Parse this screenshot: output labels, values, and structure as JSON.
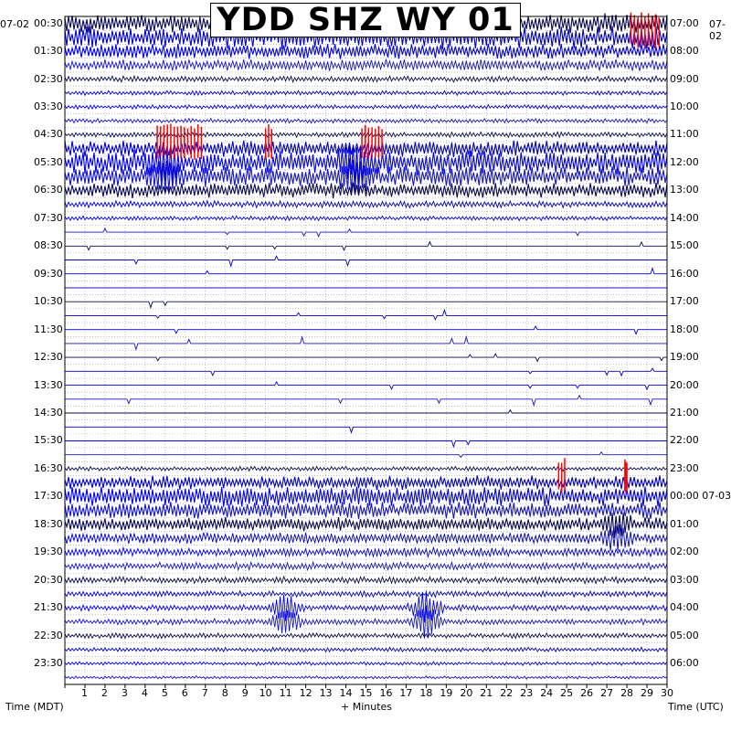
{
  "chart_data": {
    "type": "helicorder",
    "title": "YDD SHZ WY 01",
    "left_axis_label": "Time (MDT)",
    "right_axis_label": "Time (UTC)",
    "x_axis_label": "+ Minutes",
    "x_range": [
      0,
      30
    ],
    "x_ticks": [
      "1",
      "2",
      "3",
      "4",
      "5",
      "6",
      "7",
      "8",
      "9",
      "10",
      "11",
      "12",
      "13",
      "14",
      "15",
      "16",
      "17",
      "18",
      "19",
      "20",
      "21",
      "22",
      "23",
      "24",
      "25",
      "26",
      "27",
      "28",
      "29",
      "30"
    ],
    "left_date": "07-02",
    "right_dates": [
      "07-02",
      "07-03"
    ],
    "left_times": [
      "00:30",
      "01:30",
      "02:30",
      "03:30",
      "04:30",
      "05:30",
      "06:30",
      "07:30",
      "08:30",
      "09:30",
      "10:30",
      "11:30",
      "12:30",
      "13:30",
      "14:30",
      "15:30",
      "16:30",
      "17:30",
      "18:30",
      "19:30",
      "20:30",
      "21:30",
      "22:30",
      "23:30"
    ],
    "right_times": [
      "07:00",
      "08:00",
      "09:00",
      "10:00",
      "11:00",
      "12:00",
      "13:00",
      "14:00",
      "15:00",
      "16:00",
      "17:00",
      "18:00",
      "19:00",
      "20:00",
      "21:00",
      "22:00",
      "23:00",
      "00:00 07-03",
      "01:00",
      "02:00",
      "03:00",
      "04:00",
      "05:00",
      "06:00"
    ],
    "trace_colors": [
      "#0a0a50",
      "#0000c8",
      "#0000ee",
      "#1515c8"
    ],
    "clip_color": "#ff0000",
    "grid": true,
    "noise_levels_by_hour": [
      [
        2.5,
        3.0
      ],
      [
        2.0,
        1.5
      ],
      [
        0.8,
        0.6
      ],
      [
        0.6,
        0.6
      ],
      [
        0.7,
        2.2
      ],
      [
        3.2,
        2.6
      ],
      [
        2.0,
        0.9
      ],
      [
        0.6,
        0.0
      ],
      [
        0.0,
        0.0
      ],
      [
        0.0,
        0.0
      ],
      [
        0.0,
        0.0
      ],
      [
        0.0,
        0.0
      ],
      [
        0.0,
        0.0
      ],
      [
        0.0,
        0.0
      ],
      [
        0.0,
        0.0
      ],
      [
        0.0,
        0.0
      ],
      [
        0.6,
        1.8
      ],
      [
        2.6,
        2.2
      ],
      [
        1.8,
        1.5
      ],
      [
        1.2,
        1.0
      ],
      [
        0.9,
        0.8
      ],
      [
        0.8,
        0.8
      ],
      [
        0.7,
        0.6
      ],
      [
        0.5,
        0.4
      ]
    ],
    "clipped_segments": [
      {
        "hour": 0,
        "start_min": 28.2,
        "end_min": 29.6
      },
      {
        "hour": 4,
        "start_min": 4.6,
        "end_min": 6.8
      },
      {
        "hour": 4,
        "start_min": 10.0,
        "end_min": 10.3
      },
      {
        "hour": 4,
        "start_min": 14.8,
        "end_min": 15.8
      },
      {
        "hour": 16,
        "start_min": 24.6,
        "end_min": 24.9
      },
      {
        "hour": 16,
        "start_min": 27.9,
        "end_min": 28.0
      }
    ],
    "events": [
      {
        "hour": 21,
        "minute": 11.0,
        "amplitude": 2.5
      },
      {
        "hour": 21,
        "minute": 18.0,
        "amplitude": 3.0
      },
      {
        "hour": 5,
        "minute": 5.0,
        "amplitude": 2.5
      },
      {
        "hour": 5,
        "minute": 14.5,
        "amplitude": 2.5
      },
      {
        "hour": 18,
        "minute": 27.5,
        "amplitude": 2.0
      }
    ]
  }
}
